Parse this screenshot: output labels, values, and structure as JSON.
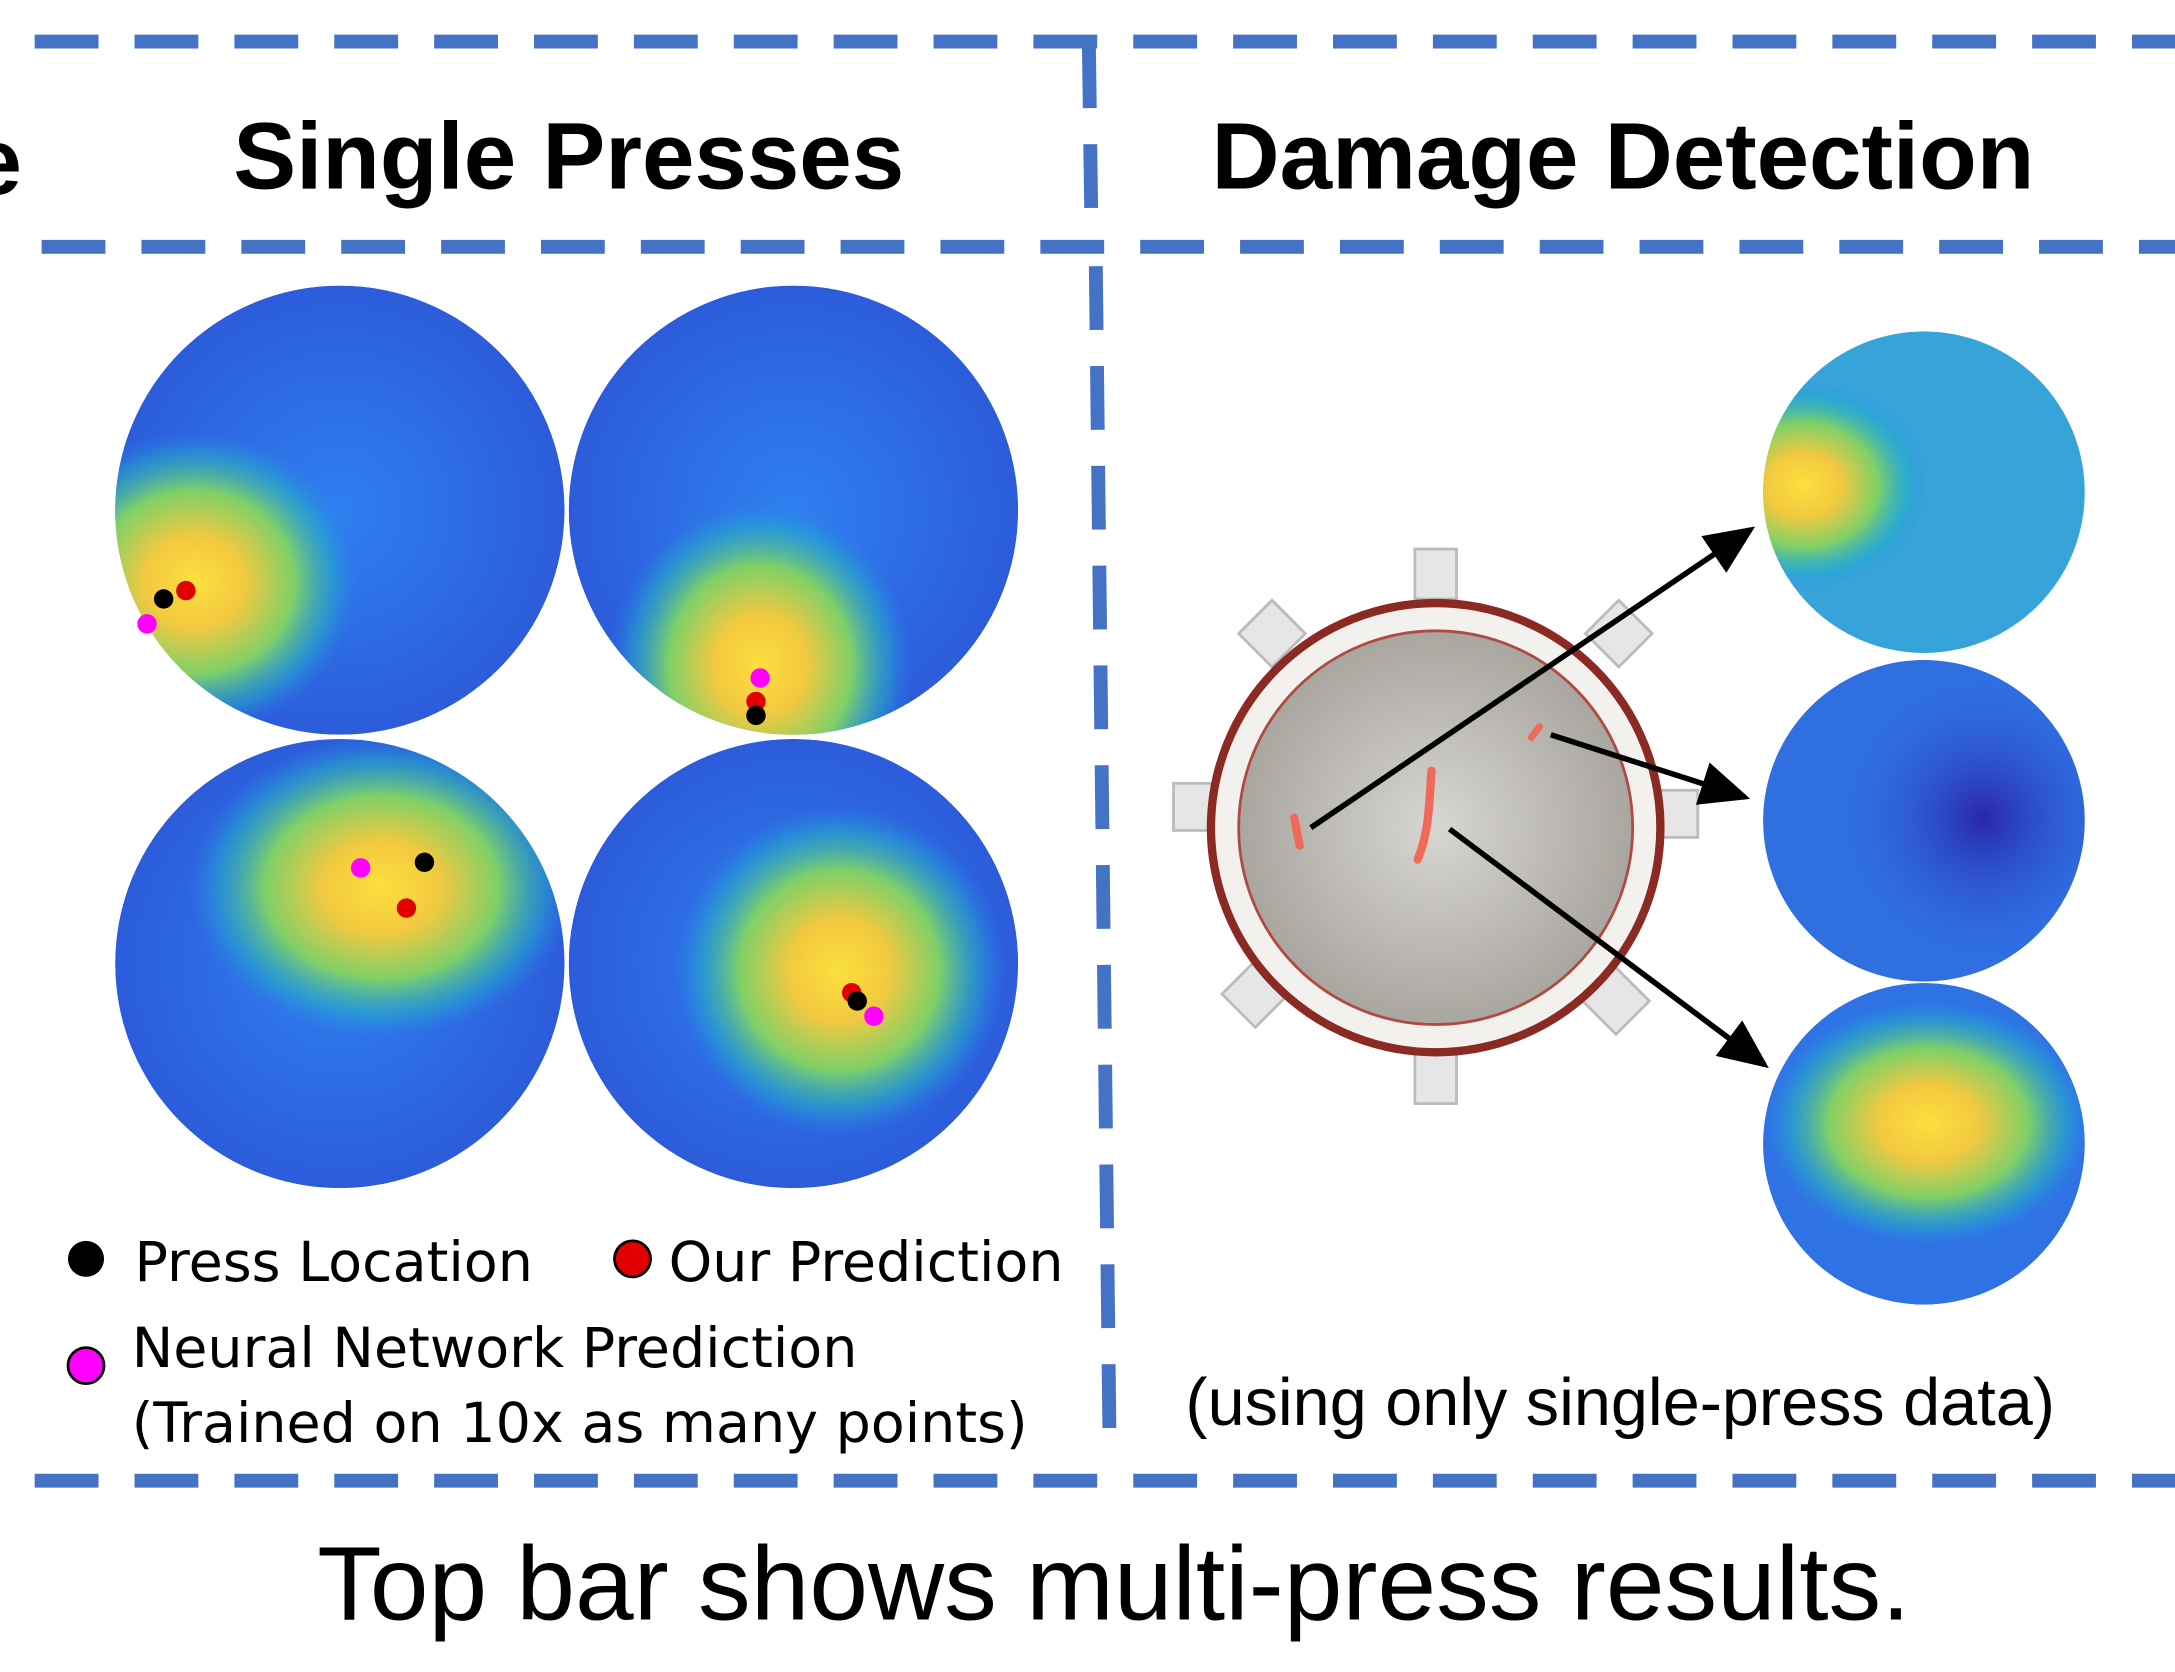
{
  "left_label_fragment": "e",
  "panels": [
    {
      "title": "Single Presses"
    },
    {
      "title": "Damage Detection",
      "caption": "(using only single-press data)"
    }
  ],
  "legend": {
    "items": [
      {
        "label": "Press Location"
      },
      {
        "label": "Our Prediction"
      },
      {
        "label": "Neural Network Prediction",
        "note": "(Trained on 10x as many points)"
      }
    ]
  },
  "footer": {
    "caption": "Top bar shows multi-press results."
  }
}
